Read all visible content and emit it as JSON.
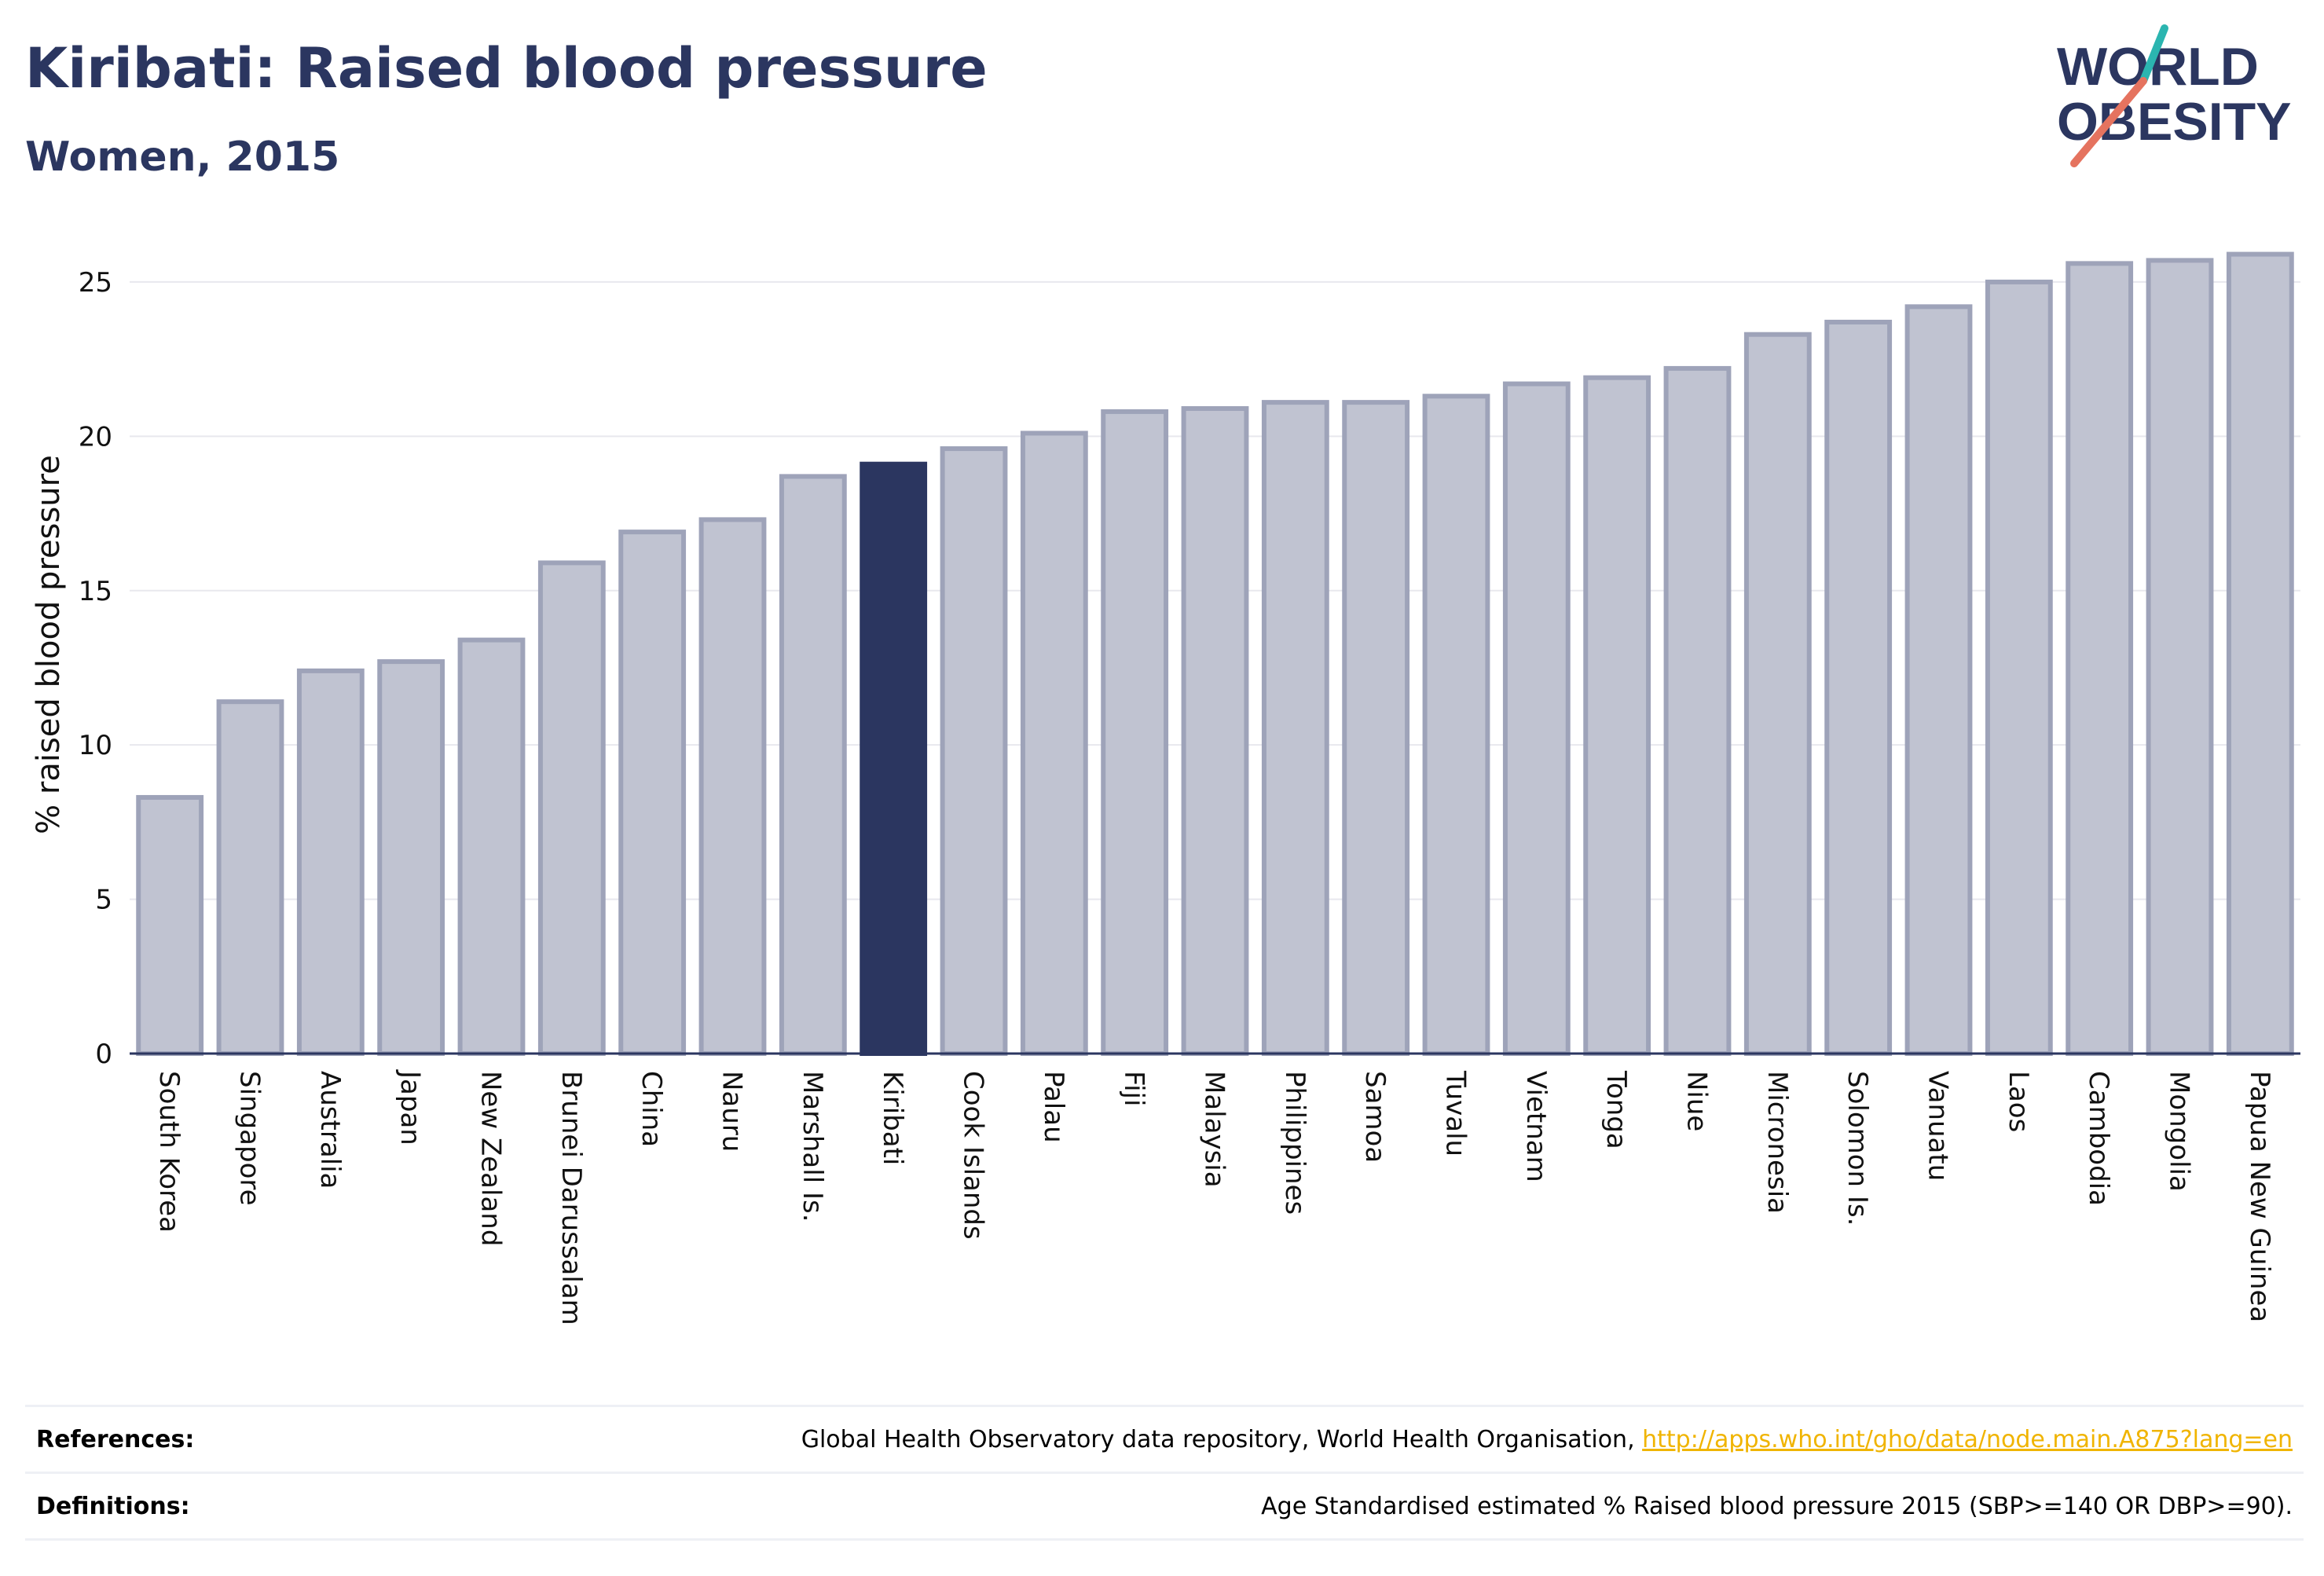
{
  "header": {
    "title": "Kiribati: Raised blood pressure",
    "subtitle": "Women, 2015"
  },
  "logo": {
    "line1": "WORLD",
    "line2": "OBESITY"
  },
  "chart_data": {
    "type": "bar",
    "title": "Kiribati: Raised blood pressure",
    "subtitle": "Women, 2015",
    "xlabel": "",
    "ylabel": "% raised blood pressure",
    "ylim": [
      0,
      26.5
    ],
    "yticks": [
      0,
      5,
      10,
      15,
      20,
      25
    ],
    "grid": true,
    "highlight": "Kiribati",
    "colors": {
      "bar": "#c0c3d1",
      "bar_edge": "#9ea3b9",
      "highlight": "#2b3660"
    },
    "categories": [
      "South Korea",
      "Singapore",
      "Australia",
      "Japan",
      "New Zealand",
      "Brunei Darussalam",
      "China",
      "Nauru",
      "Marshall Is.",
      "Kiribati",
      "Cook Islands",
      "Palau",
      "Fiji",
      "Malaysia",
      "Philippines",
      "Samoa",
      "Tuvalu",
      "Vietnam",
      "Tonga",
      "Niue",
      "Micronesia",
      "Solomon Is.",
      "Vanuatu",
      "Laos",
      "Cambodia",
      "Mongolia",
      "Papua New Guinea"
    ],
    "values": [
      8.3,
      11.4,
      12.4,
      12.7,
      13.4,
      15.9,
      16.9,
      17.3,
      18.7,
      19.1,
      19.6,
      20.1,
      20.8,
      20.9,
      21.1,
      21.1,
      21.3,
      21.7,
      21.9,
      22.2,
      23.3,
      23.7,
      24.2,
      25.0,
      25.6,
      25.7,
      25.9
    ]
  },
  "references": {
    "label": "References:",
    "text": "Global Health Observatory data repository, World Health Organisation, ",
    "link": "http://apps.who.int/gho/data/node.main.A875?lang=en"
  },
  "definitions": {
    "label": "Definitions:",
    "text": "Age Standardised estimated % Raised blood pressure 2015 (SBP>=140 OR DBP>=90)."
  }
}
